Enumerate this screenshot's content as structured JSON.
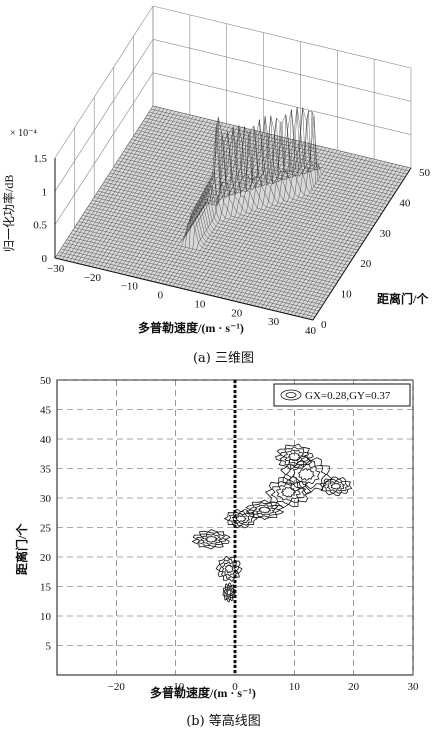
{
  "figure_a": {
    "caption": "(a) 三维图",
    "z_label": "归一化功率/dB",
    "z_multiplier": "× 10⁻⁴",
    "x_label": "多普勒速度/(m · s⁻¹)",
    "y_label": "距离门/个",
    "x_ticks": [
      "−30",
      "−20",
      "−10",
      "0",
      "10",
      "20",
      "30",
      "40"
    ],
    "y_ticks": [
      "0",
      "10",
      "20",
      "30",
      "40",
      "50"
    ],
    "z_ticks": [
      "0",
      "0.5",
      "1",
      "1.5"
    ]
  },
  "figure_b": {
    "caption": "(b) 等高线图",
    "x_label": "多普勒速度/(m · s⁻¹)",
    "y_label": "距离门/个",
    "legend": "GX=0.28,GY=0.37",
    "x_ticks": [
      "−20",
      "−10",
      "0",
      "10",
      "20",
      "30"
    ],
    "y_ticks": [
      "5",
      "10",
      "15",
      "20",
      "25",
      "30",
      "35",
      "40",
      "45",
      "50"
    ]
  },
  "chart_data": [
    {
      "type": "surface",
      "x": {
        "range": [
          -30,
          40
        ],
        "ticks": [
          -30,
          -20,
          -10,
          0,
          10,
          20,
          30,
          40
        ]
      },
      "y": {
        "range": [
          0,
          50
        ],
        "ticks": [
          0,
          10,
          20,
          30,
          40,
          50
        ]
      },
      "z": {
        "range": [
          0,
          0.00015
        ],
        "ticks": [
          0,
          5e-05,
          0.0001,
          0.00015
        ]
      },
      "grid": true
    },
    {
      "type": "contour",
      "x": {
        "range": [
          -30,
          30
        ],
        "ticks": [
          -20,
          -10,
          0,
          10,
          20,
          30
        ]
      },
      "y": {
        "range": [
          0,
          50
        ],
        "ticks": [
          5,
          10,
          15,
          20,
          25,
          30,
          35,
          40,
          45,
          50
        ]
      },
      "grid": true,
      "legend_position": "top-right",
      "reference_line_x": 0,
      "clusters": [
        {
          "cx": -1,
          "cy": 14,
          "rx": 1,
          "ry": 1.5
        },
        {
          "cx": -1,
          "cy": 18,
          "rx": 2,
          "ry": 2
        },
        {
          "cx": -4,
          "cy": 23,
          "rx": 3,
          "ry": 1.5
        },
        {
          "cx": 1,
          "cy": 26.5,
          "rx": 2.5,
          "ry": 1.5
        },
        {
          "cx": 5,
          "cy": 28,
          "rx": 3,
          "ry": 1.5
        },
        {
          "cx": 9,
          "cy": 31,
          "rx": 3.5,
          "ry": 2.5
        },
        {
          "cx": 12,
          "cy": 34,
          "rx": 4,
          "ry": 3
        },
        {
          "cx": 10,
          "cy": 37,
          "rx": 3,
          "ry": 2
        },
        {
          "cx": 17,
          "cy": 32,
          "rx": 2.5,
          "ry": 1.5
        }
      ]
    }
  ]
}
